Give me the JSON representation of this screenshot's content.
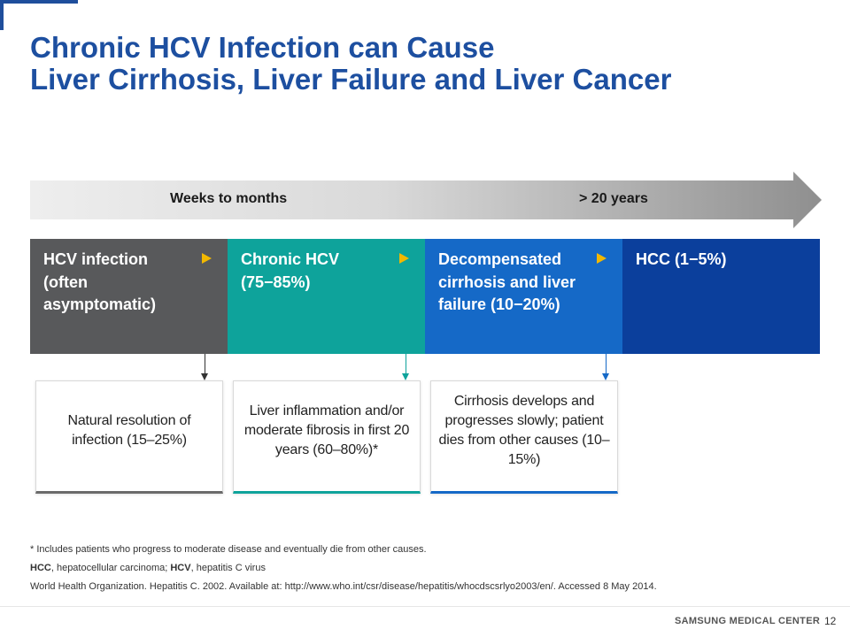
{
  "title": {
    "line1": "Chronic HCV Infection can Cause",
    "line2": "Liver Cirrhosis, Liver Failure and Liver Cancer"
  },
  "timeline": {
    "label_left": "Weeks to months",
    "label_right": "> 20 years"
  },
  "stages": [
    {
      "text": "HCV infection (often asymptomatic)",
      "color": "#58595b"
    },
    {
      "text": "Chronic HCV (75−85%)",
      "color": "#0ea39b"
    },
    {
      "text": "Decompensated cirrhosis and liver failure (10−20%)",
      "color": "#1569c7"
    },
    {
      "text": "HCC (1−5%)",
      "color": "#0b3f9c"
    }
  ],
  "outcomes": [
    {
      "text": "Natural resolution of infection (15–25%)"
    },
    {
      "text": "Liver inflammation and/or moderate fibrosis in first 20 years (60–80%)*"
    },
    {
      "text": "Cirrhosis develops and progresses slowly; patient dies from other causes (10–15%)"
    }
  ],
  "footnotes": {
    "note": "* Includes patients who progress to moderate disease and eventually  die from other causes.",
    "abbr_hcc_term": "HCC",
    "abbr_hcc_def": ", hepatocellular carcinoma;  ",
    "abbr_hcv_term": "HCV",
    "abbr_hcv_def": ", hepatitis C virus",
    "reference": "World Health Organization. Hepatitis C. 2002. Available at: http://www.who.int/csr/disease/hepatitis/whocdscsrlyo2003/en/.  Accessed 8 May 2014."
  },
  "footer": {
    "brand": "SAMSUNG MEDICAL CENTER",
    "page_number": "12"
  },
  "colors": {
    "title": "#1d4fa0",
    "accent_triangle": "#f2b800",
    "arrow_gradient_start": "#eeeeee",
    "arrow_gradient_end": "#8f8f8f"
  }
}
